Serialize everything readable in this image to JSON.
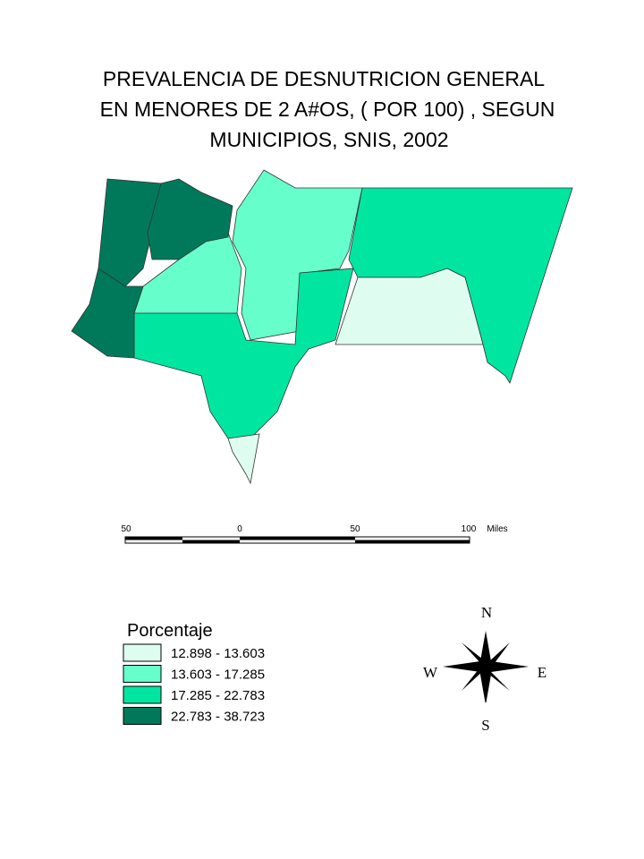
{
  "header": {
    "title": [
      "PREVALENCIA  DE DESNUTRICION GENERAL",
      "EN MENORES DE 2 A#OS,   ( POR 100)   , SEGUN",
      "MUNICIPIOS, SNIS, 2002"
    ]
  },
  "scale": {
    "labels": [
      "50",
      "0",
      "50",
      "100"
    ],
    "unit": "Miles"
  },
  "legend": {
    "title": "Porcentaje",
    "items": [
      {
        "label": "12.898 - 13.603",
        "color": "#dffcf0"
      },
      {
        "label": "13.603 - 17.285",
        "color": "#66ffcc"
      },
      {
        "label": "17.285 - 22.783",
        "color": "#00e6a0"
      },
      {
        "label": "22.783 - 38.723",
        "color": "#00795a"
      }
    ]
  },
  "compass": {
    "north": "N",
    "west": "W",
    "east": "E",
    "south": "S"
  }
}
